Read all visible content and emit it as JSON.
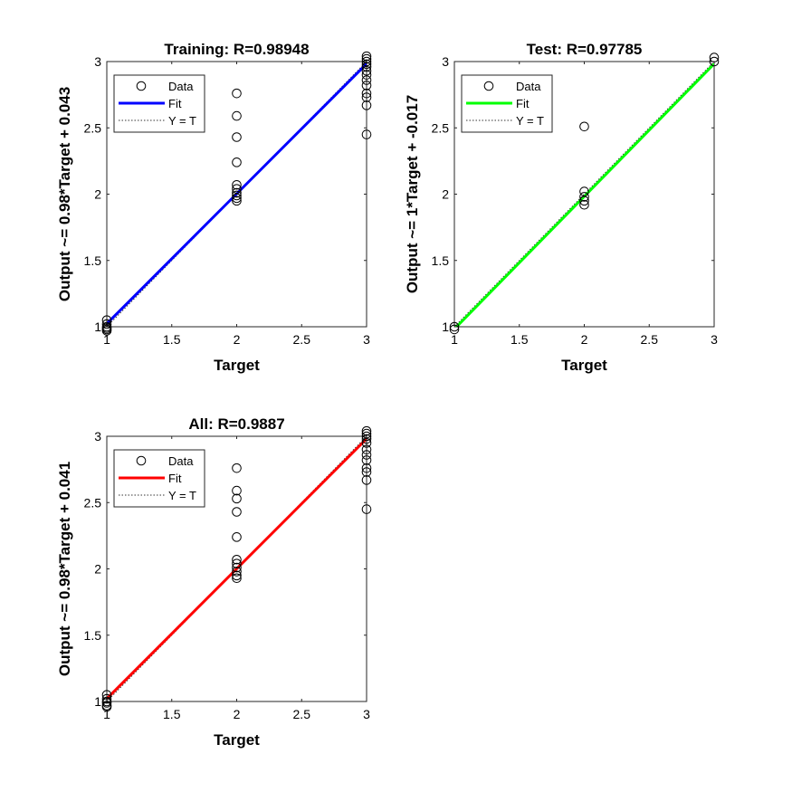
{
  "chart_data": [
    {
      "type": "scatter",
      "title": "Training: R=0.98948",
      "xlabel": "Target",
      "ylabel": "Output ~= 0.98*Target + 0.043",
      "xlim": [
        1,
        3
      ],
      "ylim": [
        1,
        3
      ],
      "xticks": [
        "1",
        "1.5",
        "2",
        "2.5",
        "3"
      ],
      "yticks": [
        "1",
        "1.5",
        "2",
        "2.5",
        "3"
      ],
      "grid": false,
      "legend": {
        "placement": "top-left",
        "entries": [
          "Data",
          "Fit",
          "Y = T"
        ]
      },
      "fit": {
        "slope": 0.98,
        "intercept": 0.043,
        "color": "#0000ff"
      },
      "series": [
        {
          "name": "Data",
          "points": [
            [
              1,
              1.05
            ],
            [
              1,
              1.02
            ],
            [
              1,
              1.0
            ],
            [
              1,
              0.99
            ],
            [
              1,
              0.98
            ],
            [
              1,
              0.97
            ],
            [
              2,
              2.76
            ],
            [
              2,
              2.59
            ],
            [
              2,
              2.43
            ],
            [
              2,
              2.24
            ],
            [
              2,
              2.07
            ],
            [
              2,
              2.04
            ],
            [
              2,
              2.01
            ],
            [
              2,
              1.99
            ],
            [
              2,
              1.97
            ],
            [
              2,
              1.95
            ],
            [
              3,
              3.04
            ],
            [
              3,
              3.02
            ],
            [
              3,
              3.0
            ],
            [
              3,
              2.98
            ],
            [
              3,
              2.96
            ],
            [
              3,
              2.93
            ],
            [
              3,
              2.9
            ],
            [
              3,
              2.86
            ],
            [
              3,
              2.82
            ],
            [
              3,
              2.76
            ],
            [
              3,
              2.73
            ],
            [
              3,
              2.67
            ],
            [
              3,
              2.45
            ]
          ]
        }
      ]
    },
    {
      "type": "scatter",
      "title": "Test: R=0.97785",
      "xlabel": "Target",
      "ylabel": "Output ~= 1*Target + -0.017",
      "xlim": [
        1,
        3
      ],
      "ylim": [
        1,
        3
      ],
      "xticks": [
        "1",
        "1.5",
        "2",
        "2.5",
        "3"
      ],
      "yticks": [
        "1",
        "1.5",
        "2",
        "2.5",
        "3"
      ],
      "grid": false,
      "legend": {
        "placement": "top-left",
        "entries": [
          "Data",
          "Fit",
          "Y = T"
        ]
      },
      "fit": {
        "slope": 1.0,
        "intercept": -0.017,
        "color": "#00ff00"
      },
      "series": [
        {
          "name": "Data",
          "points": [
            [
              1,
              1.0
            ],
            [
              1,
              0.98
            ],
            [
              2,
              2.51
            ],
            [
              2,
              2.02
            ],
            [
              2,
              1.98
            ],
            [
              2,
              1.95
            ],
            [
              2,
              1.92
            ],
            [
              3,
              3.03
            ],
            [
              3,
              3.0
            ]
          ]
        }
      ]
    },
    {
      "type": "scatter",
      "title": "All: R=0.9887",
      "xlabel": "Target",
      "ylabel": "Output ~= 0.98*Target + 0.041",
      "xlim": [
        1,
        3
      ],
      "ylim": [
        1,
        3
      ],
      "xticks": [
        "1",
        "1.5",
        "2",
        "2.5",
        "3"
      ],
      "yticks": [
        "1",
        "1.5",
        "2",
        "2.5",
        "3"
      ],
      "grid": false,
      "legend": {
        "placement": "top-left",
        "entries": [
          "Data",
          "Fit",
          "Y = T"
        ]
      },
      "fit": {
        "slope": 0.98,
        "intercept": 0.041,
        "color": "#ff0000"
      },
      "series": [
        {
          "name": "Data",
          "points": [
            [
              1,
              1.05
            ],
            [
              1,
              1.02
            ],
            [
              1,
              1.0
            ],
            [
              1,
              0.99
            ],
            [
              1,
              0.97
            ],
            [
              1,
              0.96
            ],
            [
              2,
              2.76
            ],
            [
              2,
              2.59
            ],
            [
              2,
              2.53
            ],
            [
              2,
              2.43
            ],
            [
              2,
              2.24
            ],
            [
              2,
              2.07
            ],
            [
              2,
              2.04
            ],
            [
              2,
              2.01
            ],
            [
              2,
              1.98
            ],
            [
              2,
              1.95
            ],
            [
              2,
              1.93
            ],
            [
              3,
              3.04
            ],
            [
              3,
              3.02
            ],
            [
              3,
              3.0
            ],
            [
              3,
              2.98
            ],
            [
              3,
              2.95
            ],
            [
              3,
              2.9
            ],
            [
              3,
              2.86
            ],
            [
              3,
              2.82
            ],
            [
              3,
              2.76
            ],
            [
              3,
              2.73
            ],
            [
              3,
              2.67
            ],
            [
              3,
              2.45
            ]
          ]
        }
      ]
    }
  ]
}
